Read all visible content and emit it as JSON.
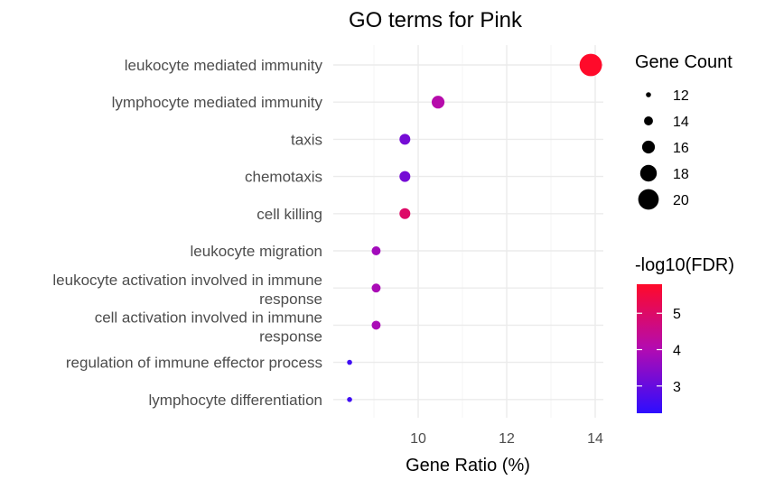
{
  "chart_data": {
    "type": "scatter",
    "title": "GO terms for Pink",
    "xlabel": "Gene Ratio (%)",
    "ylabel": "",
    "xlim": [
      8.35,
      14.25
    ],
    "xticks": [
      10,
      12,
      14
    ],
    "grid": true,
    "legend_placement": "right",
    "points": [
      {
        "term": "leukocyte mediated immunity",
        "term_lines": [
          "leukocyte mediated immunity"
        ],
        "gene_ratio": 13.9,
        "gene_count": 21,
        "neg_log10_fdr": 5.8
      },
      {
        "term": "lymphocyte mediated immunity",
        "term_lines": [
          "lymphocyte mediated immunity"
        ],
        "gene_ratio": 10.45,
        "gene_count": 16,
        "neg_log10_fdr": 4.1
      },
      {
        "term": "taxis",
        "term_lines": [
          "taxis"
        ],
        "gene_ratio": 9.7,
        "gene_count": 15,
        "neg_log10_fdr": 3.2
      },
      {
        "term": "chemotaxis",
        "term_lines": [
          "chemotaxis"
        ],
        "gene_ratio": 9.7,
        "gene_count": 15,
        "neg_log10_fdr": 3.2
      },
      {
        "term": "cell killing",
        "term_lines": [
          "cell killing"
        ],
        "gene_ratio": 9.7,
        "gene_count": 15,
        "neg_log10_fdr": 5.0
      },
      {
        "term": "leukocyte migration",
        "term_lines": [
          "leukocyte migration"
        ],
        "gene_ratio": 9.05,
        "gene_count": 14,
        "neg_log10_fdr": 3.8
      },
      {
        "term": "leukocyte activation involved in immune response",
        "term_lines": [
          "leukocyte activation involved in immune",
          "response"
        ],
        "gene_ratio": 9.05,
        "gene_count": 14,
        "neg_log10_fdr": 3.9
      },
      {
        "term": "cell activation involved in immune response",
        "term_lines": [
          "cell activation involved in immune",
          "response"
        ],
        "gene_ratio": 9.05,
        "gene_count": 14,
        "neg_log10_fdr": 3.9
      },
      {
        "term": "regulation of immune effector process",
        "term_lines": [
          "regulation of immune effector process"
        ],
        "gene_ratio": 8.45,
        "gene_count": 12,
        "neg_log10_fdr": 2.5
      },
      {
        "term": "lymphocyte differentiation",
        "term_lines": [
          "lymphocyte differentiation"
        ],
        "gene_ratio": 8.45,
        "gene_count": 12,
        "neg_log10_fdr": 2.5
      }
    ],
    "size_legend": {
      "title": "Gene Count",
      "values": [
        12,
        14,
        16,
        18,
        20
      ]
    },
    "color_legend": {
      "title": "-log10(FDR)",
      "ticks": [
        3,
        4,
        5
      ],
      "range": [
        2.25,
        5.8
      ],
      "low_color": "#2d0dff",
      "mid_color": "#b30bb1",
      "high_color": "#ff0a2a"
    }
  }
}
